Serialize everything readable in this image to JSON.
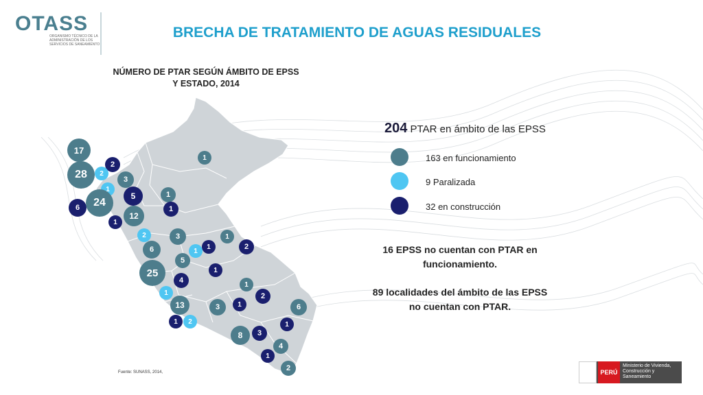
{
  "header": {
    "logo_word": "OTASS",
    "logo_subtitle": "ORGANISMO TÉCNICO DE LA ADMINISTRACIÓN DE LOS SERVICIOS DE SANEAMIENTO",
    "title": "BRECHA DE TRATAMIENTO DE AGUAS RESIDUALES"
  },
  "map": {
    "title_line1": "NÚMERO DE PTAR SEGÚN ÁMBITO DE EPSS",
    "title_line2": "Y ESTADO, 2014",
    "source": "Fuente: SUNASS, 2014,"
  },
  "summary": {
    "total_number": "204",
    "total_text": "PTAR en ámbito de las EPSS",
    "legend": [
      {
        "label": "163 en funcionamiento",
        "color": "#4d7d8c"
      },
      {
        "label": "9 Paralizada",
        "color": "#4fc6f2"
      },
      {
        "label": "32 en construcción",
        "color": "#1a1f6e"
      }
    ],
    "note1": "16 EPSS no cuentan con PTAR en funcionamiento.",
    "note2": "89 localidades del ámbito de las EPSS no cuentan con PTAR."
  },
  "bubbles": [
    "17",
    "2",
    "28",
    "2",
    "3",
    "1",
    "5",
    "1",
    "6",
    "24",
    "1",
    "12",
    "1",
    "1",
    "2",
    "3",
    "1",
    "6",
    "1",
    "2",
    "5",
    "25",
    "1",
    "4",
    "1",
    "1",
    "2",
    "13",
    "3",
    "1",
    "6",
    "1",
    "2",
    "1",
    "8",
    "3",
    "4",
    "1",
    "2",
    "1"
  ],
  "footer": {
    "country": "PERÚ",
    "ministry": "Ministerio de Vivienda, Construcción y Saneamiento"
  },
  "colors": {
    "operating": "#4d7d8c",
    "paralyzed": "#4fc6f2",
    "construction": "#1a1f6e",
    "title": "#1e9fcc"
  }
}
